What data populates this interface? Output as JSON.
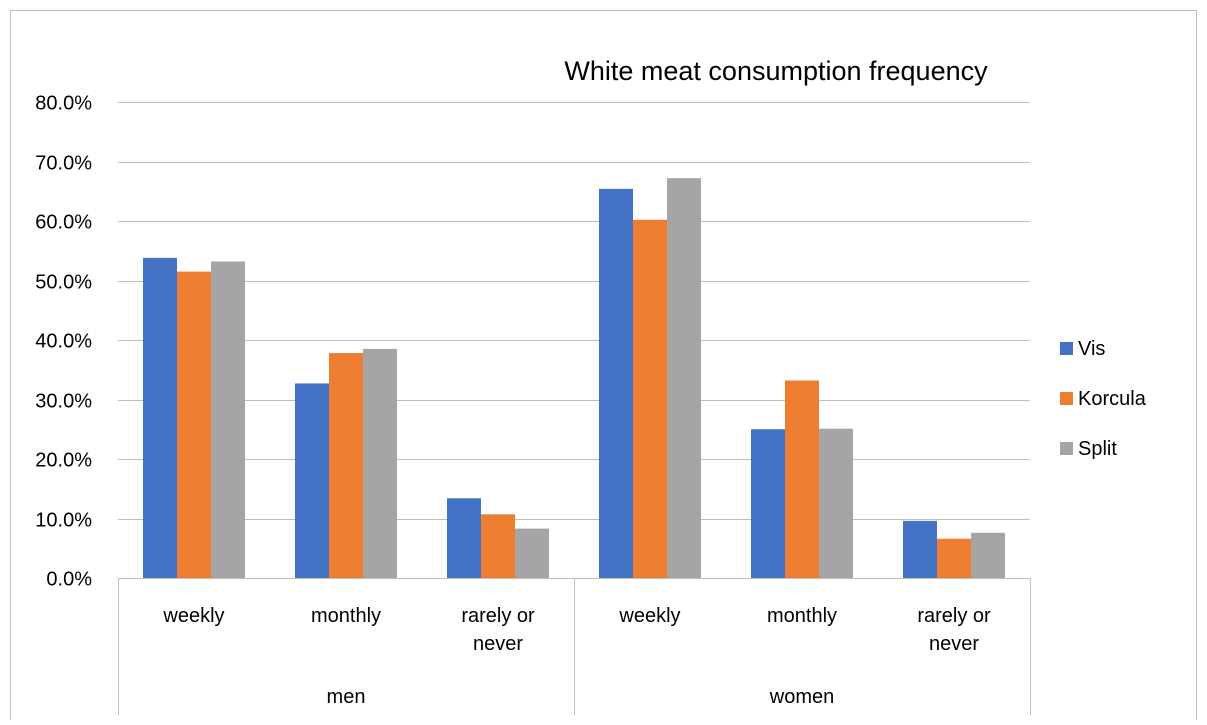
{
  "chart_data": {
    "type": "bar",
    "title": "White meat consumption frequency",
    "xlabel": "",
    "ylabel": "",
    "ylim": [
      0,
      0.8
    ],
    "y_ticks": [
      {
        "value": 0.0,
        "label": "0.0%"
      },
      {
        "value": 0.1,
        "label": "10.0%"
      },
      {
        "value": 0.2,
        "label": "20.0%"
      },
      {
        "value": 0.3,
        "label": "30.0%"
      },
      {
        "value": 0.4,
        "label": "40.0%"
      },
      {
        "value": 0.5,
        "label": "50.0%"
      },
      {
        "value": 0.6,
        "label": "60.0%"
      },
      {
        "value": 0.7,
        "label": "70.0%"
      },
      {
        "value": 0.8,
        "label": "80.0%"
      }
    ],
    "grid": true,
    "legend_position": "right",
    "groups": [
      {
        "label": "men",
        "categories": [
          [
            "weekly"
          ],
          [
            "monthly"
          ],
          [
            "rarely or",
            "never"
          ]
        ]
      },
      {
        "label": "women",
        "categories": [
          [
            "weekly"
          ],
          [
            "monthly"
          ],
          [
            "rarely or",
            "never"
          ]
        ]
      }
    ],
    "series": [
      {
        "name": "Vis",
        "color": "#4472C4",
        "values": [
          0.538,
          0.327,
          0.134,
          0.654,
          0.25,
          0.096
        ]
      },
      {
        "name": "Korcula",
        "color": "#ED7D31",
        "values": [
          0.515,
          0.378,
          0.107,
          0.602,
          0.332,
          0.066
        ]
      },
      {
        "name": "Split",
        "color": "#A5A5A5",
        "values": [
          0.532,
          0.385,
          0.083,
          0.672,
          0.251,
          0.076
        ]
      }
    ]
  }
}
